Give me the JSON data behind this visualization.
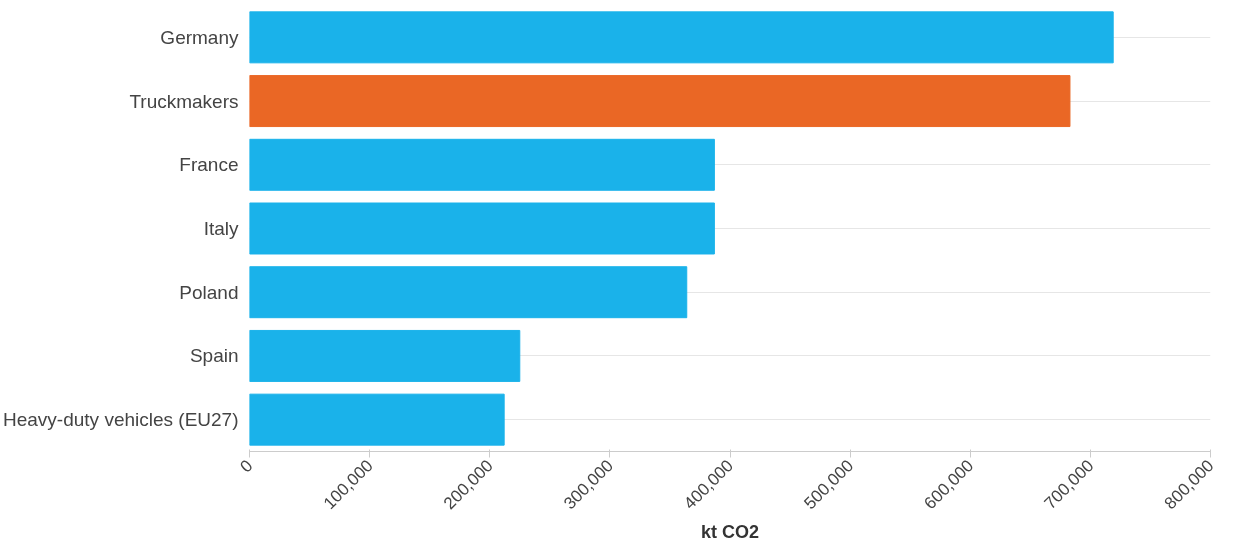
{
  "chart_data": {
    "type": "bar",
    "orientation": "horizontal",
    "xlabel": "kt CO2",
    "categories": [
      "Germany",
      "Truckmakers",
      "France",
      "Italy",
      "Poland",
      "Spain",
      "Heavy-duty vehicles (EU27)"
    ],
    "values": [
      719000,
      683000,
      387000,
      387000,
      364000,
      225000,
      212000
    ],
    "colors": [
      "#1ab2ea",
      "#ea6725",
      "#1ab2ea",
      "#1ab2ea",
      "#1ab2ea",
      "#1ab2ea",
      "#1ab2ea"
    ],
    "xlim": [
      0,
      800000
    ],
    "xticks": [
      {
        "value": 0,
        "label": "0"
      },
      {
        "value": 100000,
        "label": "100,000"
      },
      {
        "value": 200000,
        "label": "200,000"
      },
      {
        "value": 300000,
        "label": "300,000"
      },
      {
        "value": 400000,
        "label": "400,000"
      },
      {
        "value": 500000,
        "label": "500,000"
      },
      {
        "value": 600000,
        "label": "600,000"
      },
      {
        "value": 700000,
        "label": "700,000"
      },
      {
        "value": 800000,
        "label": "800,000"
      }
    ],
    "grid": "y"
  }
}
